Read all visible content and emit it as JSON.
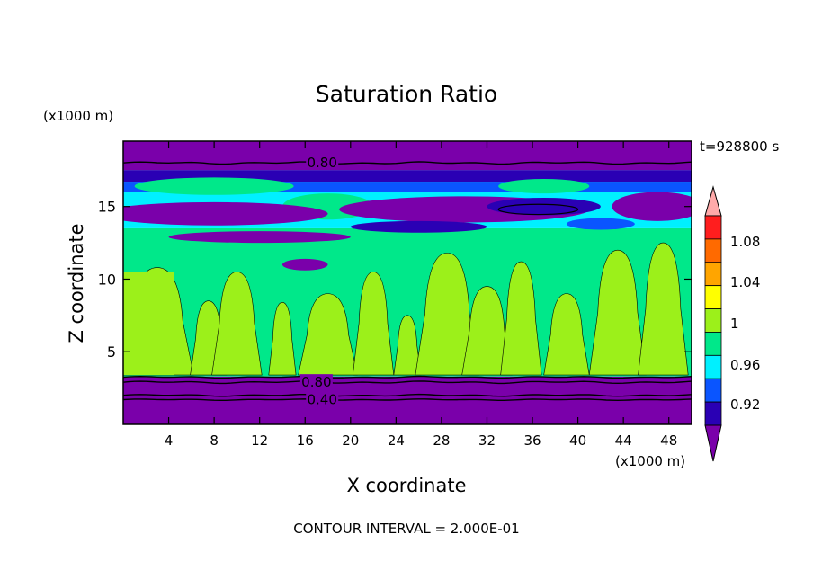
{
  "chart_data": {
    "type": "heatmap",
    "title": "Saturation Ratio",
    "xlabel": "X coordinate",
    "ylabel": "Z coordinate",
    "x_unit": "(x1000 m)",
    "y_unit": "(x1000 m)",
    "time_label": "t=928800 s",
    "footer": "CONTOUR INTERVAL = 2.000E-01",
    "xlim": [
      0,
      50
    ],
    "ylim": [
      0,
      19.5
    ],
    "x_ticks": [
      4,
      8,
      12,
      16,
      20,
      24,
      28,
      32,
      36,
      40,
      44,
      48
    ],
    "y_ticks": [
      5,
      10,
      15
    ],
    "colorbar": {
      "levels": [
        0.92,
        0.96,
        1,
        1.04,
        1.08
      ],
      "level_labels": [
        "0.92",
        "0.96",
        "1",
        "1.04",
        "1.08"
      ],
      "colors": [
        "#7a00aa",
        "#2a00b4",
        "#0a55ff",
        "#00f0ff",
        "#00e88a",
        "#9cf01a",
        "#ffff00",
        "#ffa500",
        "#ff6a00",
        "#ff1e1e",
        "#ffaaaa"
      ]
    },
    "contour_labels": [
      {
        "text": "0.80",
        "x": 17.5,
        "z": 18.0
      },
      {
        "text": "0.80",
        "x": 17.0,
        "z": 2.9
      },
      {
        "text": "0.40",
        "x": 17.5,
        "z": 1.7
      }
    ],
    "regions": {
      "bottom_layer": {
        "z": [
          0,
          3.3
        ],
        "value": "< 0.92"
      },
      "moist_band": {
        "z": [
          3.3,
          13.5
        ],
        "value": "0.96 - 1.00 with patches > 1.00"
      },
      "upper_band": {
        "z": [
          13.5,
          17.5
        ],
        "value": "mixed 0.92 - 1.00"
      },
      "top_layer": {
        "z": [
          17.5,
          19.5
        ],
        "value": "< 0.92"
      }
    }
  }
}
